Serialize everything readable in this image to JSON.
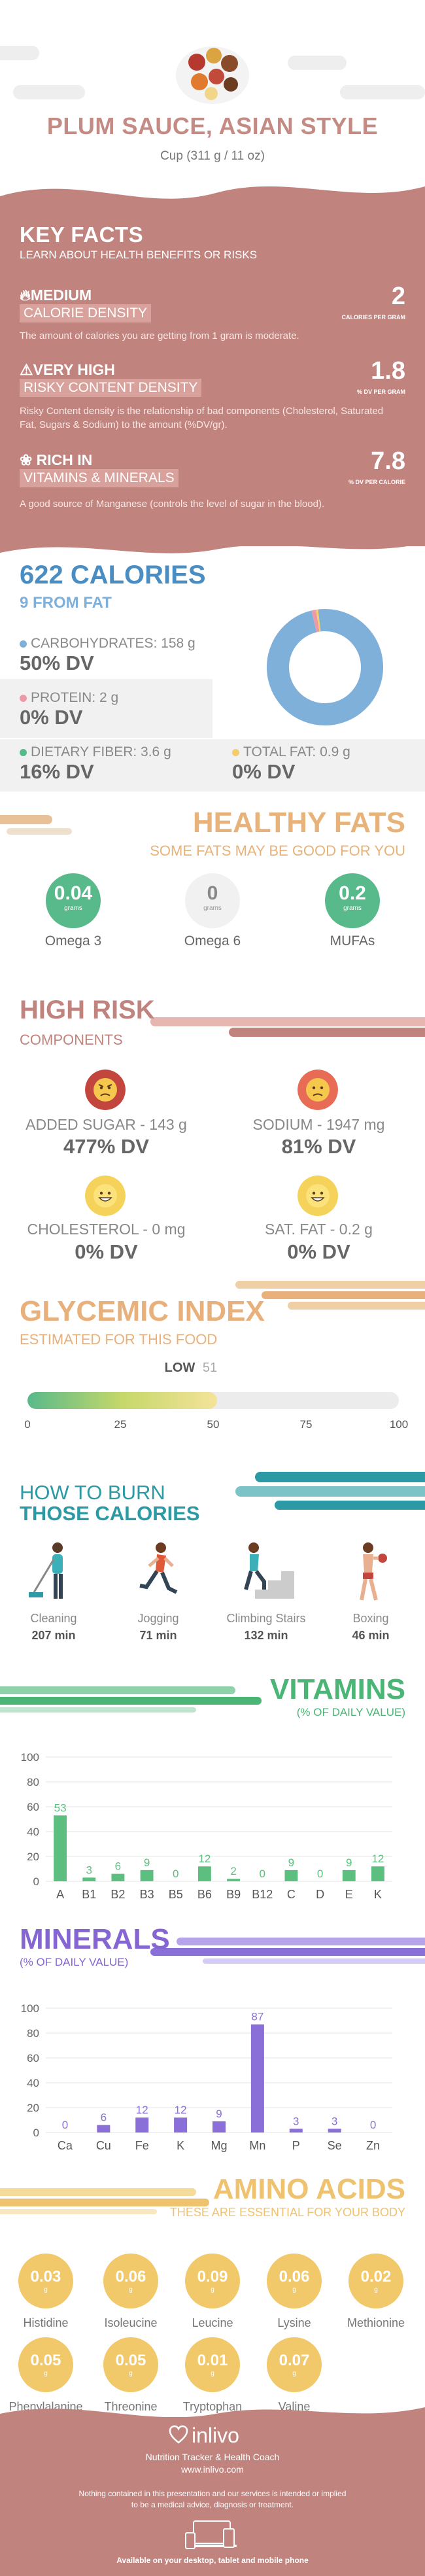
{
  "header": {
    "title": "PLUM SAUCE, ASIAN STYLE",
    "serving": "Cup (311 g / 11 oz)"
  },
  "key_facts": {
    "title": "KEY FACTS",
    "subtitle": "LEARN ABOUT HEALTH BENEFITS OR RISKS",
    "facts": [
      {
        "level": "MEDIUM",
        "name": "CALORIE DENSITY",
        "value": "2",
        "unit": "CALORIES PER GRAM",
        "desc": "The amount of calories you are getting from 1 gram is moderate."
      },
      {
        "level": "VERY HIGH",
        "name": "RISKY CONTENT DENSITY",
        "value": "1.8",
        "unit": "% DV PER GRAM",
        "desc": "Risky Content density is the relationship of bad components (Cholesterol, Saturated Fat, Sugars & Sodium) to the amount (%DV/gr)."
      },
      {
        "level": "RICH IN",
        "name": "VITAMINS & MINERALS",
        "value": "7.8",
        "unit": "% DV PER CALORIE",
        "desc": "A good source of Manganese (controls the level of sugar in the blood)."
      }
    ]
  },
  "calories": {
    "title": "622 CALORIES",
    "subtitle": "9 FROM FAT",
    "carbs_label": "CARBOHYDRATES: 158 g",
    "carbs_dv": "50% DV",
    "protein_label": "PROTEIN: 2 g",
    "protein_dv": "0% DV",
    "fiber_label": "DIETARY FIBER: 3.6 g",
    "fiber_dv": "16% DV",
    "fat_label": "TOTAL FAT: 0.9 g",
    "fat_dv": "0% DV",
    "donut": {
      "carbs": 158,
      "protein": 2,
      "fat": 0.9
    },
    "colors": {
      "carbs": "#7fb0da",
      "protein": "#ee9aa6",
      "fiber": "#58b98a",
      "fat": "#f4cc6a"
    }
  },
  "healthy_fats": {
    "title": "HEALTHY FATS",
    "subtitle": "SOME FATS MAY BE GOOD FOR YOU",
    "items": [
      {
        "value": "0.04",
        "unit": "grams",
        "name": "Omega 3",
        "color": "#58b98a"
      },
      {
        "value": "0",
        "unit": "grams",
        "name": "Omega 6",
        "color": "#f1f1f1"
      },
      {
        "value": "0.2",
        "unit": "grams",
        "name": "MUFAs",
        "color": "#58b98a"
      }
    ]
  },
  "high_risk": {
    "title": "HIGH RISK",
    "subtitle": "COMPONENTS",
    "items": [
      {
        "label": "ADDED SUGAR - 143 g",
        "dv": "477% DV",
        "face": "angry"
      },
      {
        "label": "SODIUM - 1947 mg",
        "dv": "81% DV",
        "face": "sad"
      },
      {
        "label": "CHOLESTEROL - 0 mg",
        "dv": "0% DV",
        "face": "happy"
      },
      {
        "label": "SAT. FAT - 0.2 g",
        "dv": "0% DV",
        "face": "happy"
      }
    ]
  },
  "glycemic": {
    "title": "GLYCEMIC INDEX",
    "subtitle": "ESTIMATED FOR THIS FOOD",
    "level": "LOW",
    "value": 51,
    "value_text": "51",
    "ticks": [
      "0",
      "25",
      "50",
      "75",
      "100"
    ]
  },
  "burn": {
    "title_line1": "HOW TO BURN",
    "title_line2": "THOSE CALORIES",
    "activities": [
      {
        "name": "Cleaning",
        "minutes": "207 min"
      },
      {
        "name": "Jogging",
        "minutes": "71 min"
      },
      {
        "name": "Climbing Stairs",
        "minutes": "132 min"
      },
      {
        "name": "Boxing",
        "minutes": "46 min"
      }
    ]
  },
  "vitamins": {
    "title": "VITAMINS",
    "subtitle": "(% OF DAILY VALUE)",
    "color": "#5cbf80",
    "chart_data": {
      "type": "bar",
      "categories": [
        "A",
        "B1",
        "B2",
        "B3",
        "B5",
        "B6",
        "B9",
        "B12",
        "C",
        "D",
        "E",
        "K"
      ],
      "values": [
        53,
        3,
        6,
        9,
        0,
        12,
        2,
        0,
        9,
        0,
        9,
        12
      ],
      "value_labels": [
        "53",
        "3",
        "6",
        "9",
        "0",
        "12",
        "2",
        "0",
        "9",
        "0",
        "9",
        "12"
      ],
      "yticks": [
        "0",
        "20",
        "40",
        "60",
        "80",
        "100"
      ],
      "ylim": [
        0,
        100
      ]
    }
  },
  "minerals": {
    "title": "MINERALS",
    "subtitle": "(% OF DAILY VALUE)",
    "color": "#8a6fd8",
    "chart_data": {
      "type": "bar",
      "categories": [
        "Ca",
        "Cu",
        "Fe",
        "K",
        "Mg",
        "Mn",
        "P",
        "Se",
        "Zn"
      ],
      "values": [
        0,
        6,
        12,
        12,
        9,
        87,
        3,
        3,
        0
      ],
      "value_labels": [
        "0",
        "6",
        "12",
        "12",
        "9",
        "87",
        "3",
        "3",
        "0"
      ],
      "yticks": [
        "0",
        "20",
        "40",
        "60",
        "80",
        "100"
      ],
      "ylim": [
        0,
        100
      ]
    }
  },
  "amino": {
    "title": "AMINO ACIDS",
    "subtitle": "THESE ARE ESSENTIAL FOR YOUR BODY",
    "items": [
      {
        "value": "0.03",
        "unit": "g",
        "name": "Histidine"
      },
      {
        "value": "0.06",
        "unit": "g",
        "name": "Isoleucine"
      },
      {
        "value": "0.09",
        "unit": "g",
        "name": "Leucine"
      },
      {
        "value": "0.06",
        "unit": "g",
        "name": "Lysine"
      },
      {
        "value": "0.02",
        "unit": "g",
        "name": "Methionine"
      },
      {
        "value": "0.05",
        "unit": "g",
        "name": "Phenylalanine"
      },
      {
        "value": "0.05",
        "unit": "g",
        "name": "Threonine"
      },
      {
        "value": "0.01",
        "unit": "g",
        "name": "Tryptophan"
      },
      {
        "value": "0.07",
        "unit": "g",
        "name": "Valine"
      }
    ]
  },
  "footer": {
    "brand": "inlivo",
    "tagline": "Nutrition Tracker & Health Coach",
    "url": "www.inlivo.com",
    "disclaimer1": "Nothing contained in this presentation and our services is intended or implied",
    "disclaimer2": "to be a medical advice, diagnosis or treatment.",
    "available": "Available on your desktop, tablet and mobile phone"
  }
}
